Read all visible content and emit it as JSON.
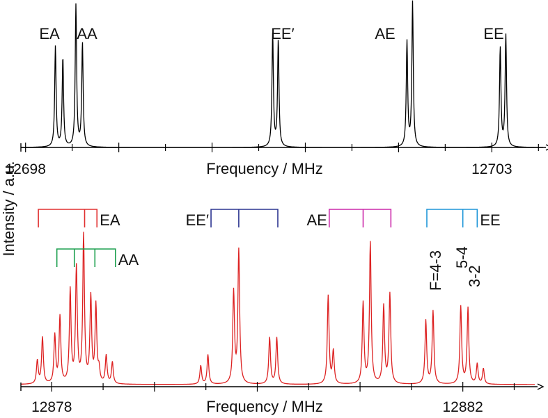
{
  "y_label": "Intensity / a.u.",
  "chart_data": [
    {
      "type": "line",
      "panel": "top",
      "xlabel": "Frequency / MHz",
      "ylabel": "Intensity / a.u.",
      "xlim": [
        12697.95,
        12703.55
      ],
      "x_ticks": [
        "12698",
        "12703"
      ],
      "x_tick_values": [
        12698,
        12703
      ],
      "minor_tick_step": 1,
      "grid": false,
      "line_color": "#000000",
      "series": [
        {
          "peaks": [
            {
              "x": 12698.32,
              "h": 0.71,
              "w": 0.009
            },
            {
              "x": 12698.4,
              "h": 0.63,
              "w": 0.009
            },
            {
              "x": 12698.54,
              "h": 1.0,
              "w": 0.009
            },
            {
              "x": 12698.61,
              "h": 0.73,
              "w": 0.009
            },
            {
              "x": 12700.65,
              "h": 0.8,
              "w": 0.009
            },
            {
              "x": 12700.71,
              "h": 0.75,
              "w": 0.009
            },
            {
              "x": 12702.09,
              "h": 0.74,
              "w": 0.009
            },
            {
              "x": 12702.15,
              "h": 1.02,
              "w": 0.009
            },
            {
              "x": 12703.09,
              "h": 0.7,
              "w": 0.009
            },
            {
              "x": 12703.15,
              "h": 0.79,
              "w": 0.009
            }
          ]
        }
      ],
      "annotations": [
        {
          "text": "EA",
          "x": 12698.3,
          "y": 0.85
        },
        {
          "text": "AA",
          "x": 12698.8,
          "y": 0.85
        },
        {
          "text": "EE′",
          "x": 12700.85,
          "y": 0.85
        },
        {
          "text": "AE",
          "x": 12701.98,
          "y": 0.85
        },
        {
          "text": "EE",
          "x": 12703.07,
          "y": 0.85
        }
      ]
    },
    {
      "type": "line",
      "panel": "bottom",
      "xlabel": "Frequency / MHz",
      "ylabel": "Intensity / a.u.",
      "xlim": [
        12877.7,
        12882.7
      ],
      "x_ticks": [
        "12878",
        "12882"
      ],
      "x_tick_values": [
        12878,
        12882
      ],
      "minor_tick_step": 1,
      "grid": false,
      "line_color": "#dd2222",
      "series": [
        {
          "peaks": [
            {
              "x": 12877.86,
              "h": 0.15,
              "w": 0.01
            },
            {
              "x": 12877.91,
              "h": 0.3,
              "w": 0.01
            },
            {
              "x": 12878.03,
              "h": 0.31,
              "w": 0.01
            },
            {
              "x": 12878.08,
              "h": 0.43,
              "w": 0.01
            },
            {
              "x": 12878.18,
              "h": 0.6,
              "w": 0.01
            },
            {
              "x": 12878.24,
              "h": 0.74,
              "w": 0.01
            },
            {
              "x": 12878.31,
              "h": 0.95,
              "w": 0.01
            },
            {
              "x": 12878.38,
              "h": 0.55,
              "w": 0.01
            },
            {
              "x": 12878.43,
              "h": 0.5,
              "w": 0.01
            },
            {
              "x": 12878.46,
              "h": 0.08,
              "w": 0.01
            },
            {
              "x": 12878.53,
              "h": 0.18,
              "w": 0.01
            },
            {
              "x": 12878.59,
              "h": 0.14,
              "w": 0.01
            },
            {
              "x": 12879.45,
              "h": 0.12,
              "w": 0.01
            },
            {
              "x": 12879.52,
              "h": 0.19,
              "w": 0.01
            },
            {
              "x": 12879.77,
              "h": 0.59,
              "w": 0.01
            },
            {
              "x": 12879.82,
              "h": 0.86,
              "w": 0.01
            },
            {
              "x": 12880.12,
              "h": 0.3,
              "w": 0.01
            },
            {
              "x": 12880.19,
              "h": 0.3,
              "w": 0.01
            },
            {
              "x": 12880.69,
              "h": 0.57,
              "w": 0.01
            },
            {
              "x": 12880.74,
              "h": 0.21,
              "w": 0.01
            },
            {
              "x": 12881.03,
              "h": 0.52,
              "w": 0.01
            },
            {
              "x": 12881.1,
              "h": 0.91,
              "w": 0.01
            },
            {
              "x": 12881.23,
              "h": 0.5,
              "w": 0.01
            },
            {
              "x": 12881.29,
              "h": 0.58,
              "w": 0.01
            },
            {
              "x": 12881.64,
              "h": 0.41,
              "w": 0.01
            },
            {
              "x": 12881.71,
              "h": 0.47,
              "w": 0.01
            },
            {
              "x": 12881.98,
              "h": 0.5,
              "w": 0.01
            },
            {
              "x": 12882.05,
              "h": 0.49,
              "w": 0.01
            },
            {
              "x": 12882.14,
              "h": 0.13,
              "w": 0.01
            },
            {
              "x": 12882.2,
              "h": 0.1,
              "w": 0.01
            }
          ]
        }
      ],
      "annotations": [
        {
          "text": "EA",
          "color": "#e03030",
          "x_range": [
            12877.87,
            12878.44
          ],
          "x_mid": 12878.32
        },
        {
          "text": "AA",
          "color": "#1ea050",
          "x_range": [
            12878.05,
            12878.62
          ],
          "x_mid": [
            12878.22,
            12878.42
          ]
        },
        {
          "text": "EE′",
          "color": "#2c3590",
          "x_range": [
            12879.55,
            12880.2
          ],
          "x_mid": 12879.82
        },
        {
          "text": "AE",
          "color": "#cc2aaa",
          "x_range": [
            12880.7,
            12881.3
          ],
          "x_mid": 12881.03
        },
        {
          "text": "EE",
          "color": "#1e96d8",
          "x_range": [
            12881.65,
            12882.14
          ],
          "x_mid": 12882.0
        },
        {
          "text": "F=4-3",
          "x": 12881.73,
          "rotated": true
        },
        {
          "text": "5-4",
          "x": 12881.99,
          "rotated": true
        },
        {
          "text": "3-2",
          "x": 12882.11,
          "rotated": true
        }
      ]
    }
  ]
}
